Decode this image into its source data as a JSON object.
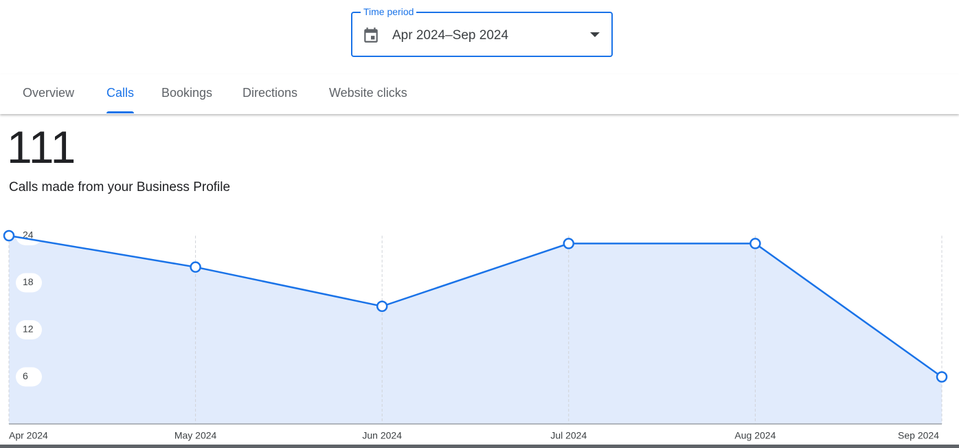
{
  "time_period": {
    "label": "Time period",
    "value": "Apr 2024–Sep 2024"
  },
  "tabs": [
    "Overview",
    "Calls",
    "Bookings",
    "Directions",
    "Website clicks"
  ],
  "active_tab": 1,
  "summary": {
    "total": "111",
    "caption": "Calls made from your Business Profile"
  },
  "chart_data": {
    "type": "line",
    "categories": [
      "Apr 2024",
      "May 2024",
      "Jun 2024",
      "Jul 2024",
      "Aug 2024",
      "Sep 2024"
    ],
    "series": [
      {
        "name": "Calls",
        "color": "#1a73e8",
        "values": [
          24,
          20,
          15,
          23,
          23,
          6
        ]
      }
    ],
    "ylim": [
      0,
      24
    ],
    "yticks": [
      6,
      12,
      18,
      24
    ],
    "area": true,
    "area_color": "#e1ebfc"
  }
}
